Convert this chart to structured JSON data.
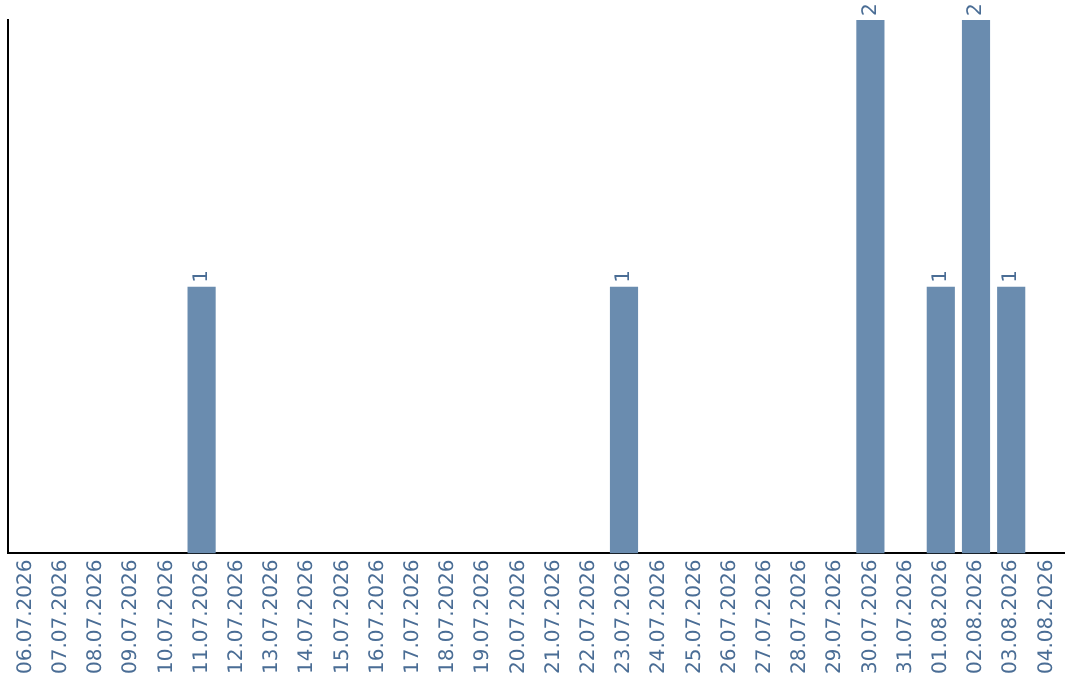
{
  "chart_data": {
    "type": "bar",
    "categories": [
      "06.07.2026",
      "07.07.2026",
      "08.07.2026",
      "09.07.2026",
      "10.07.2026",
      "11.07.2026",
      "12.07.2026",
      "13.07.2026",
      "14.07.2026",
      "15.07.2026",
      "16.07.2026",
      "17.07.2026",
      "18.07.2026",
      "19.07.2026",
      "20.07.2026",
      "21.07.2026",
      "22.07.2026",
      "23.07.2026",
      "24.07.2026",
      "25.07.2026",
      "26.07.2026",
      "27.07.2026",
      "28.07.2026",
      "29.07.2026",
      "30.07.2026",
      "31.07.2026",
      "01.08.2026",
      "02.08.2026",
      "03.08.2026",
      "04.08.2026"
    ],
    "values": [
      0,
      0,
      0,
      0,
      0,
      1,
      0,
      0,
      0,
      0,
      0,
      0,
      0,
      0,
      0,
      0,
      0,
      1,
      0,
      0,
      0,
      0,
      0,
      0,
      2,
      0,
      1,
      2,
      1,
      0
    ],
    "value_labels": [
      null,
      null,
      null,
      null,
      null,
      "1",
      null,
      null,
      null,
      null,
      null,
      null,
      null,
      null,
      null,
      null,
      null,
      "1",
      null,
      null,
      null,
      null,
      null,
      null,
      "2",
      null,
      "1",
      "2",
      "1",
      null
    ],
    "color": "#6a8caf",
    "tick_labels": "x",
    "grid": false,
    "legend": false
  }
}
